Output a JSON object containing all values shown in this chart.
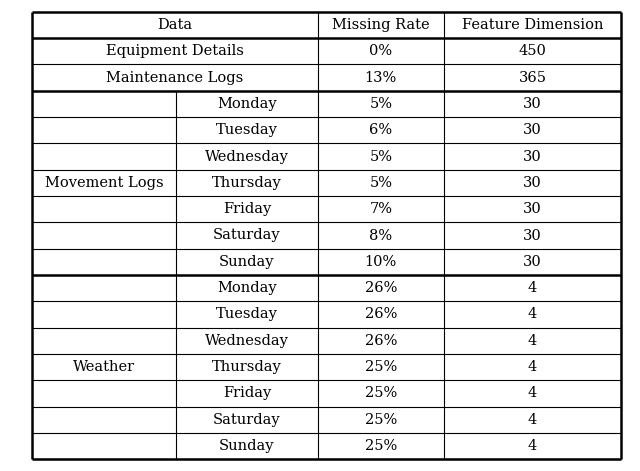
{
  "header": [
    "Data",
    "Missing Rate",
    "Feature Dimension"
  ],
  "eq_row": {
    "label": "Equipment Details",
    "missing": "0%",
    "feature": "450"
  },
  "ml_row": {
    "label": "Maintenance Logs",
    "missing": "13%",
    "feature": "365"
  },
  "mov_label": "Movement Logs",
  "mov_days": [
    "Monday",
    "Tuesday",
    "Wednesday",
    "Thursday",
    "Friday",
    "Saturday",
    "Sunday"
  ],
  "mov_missing": [
    "5%",
    "6%",
    "5%",
    "5%",
    "7%",
    "8%",
    "10%"
  ],
  "mov_feature": "30",
  "wth_label": "Weather",
  "wth_days": [
    "Monday",
    "Tuesday",
    "Wednesday",
    "Thursday",
    "Friday",
    "Saturday",
    "Sunday"
  ],
  "wth_missing": [
    "26%",
    "26%",
    "26%",
    "25%",
    "25%",
    "25%",
    "25%"
  ],
  "wth_feature": "4",
  "bg_color": "#ffffff",
  "text_color": "#000000",
  "col_splits": [
    0.0,
    0.245,
    0.485,
    0.7,
    1.0
  ],
  "thin_lw": 0.8,
  "thick_lw": 1.8,
  "fontsize": 10.5
}
